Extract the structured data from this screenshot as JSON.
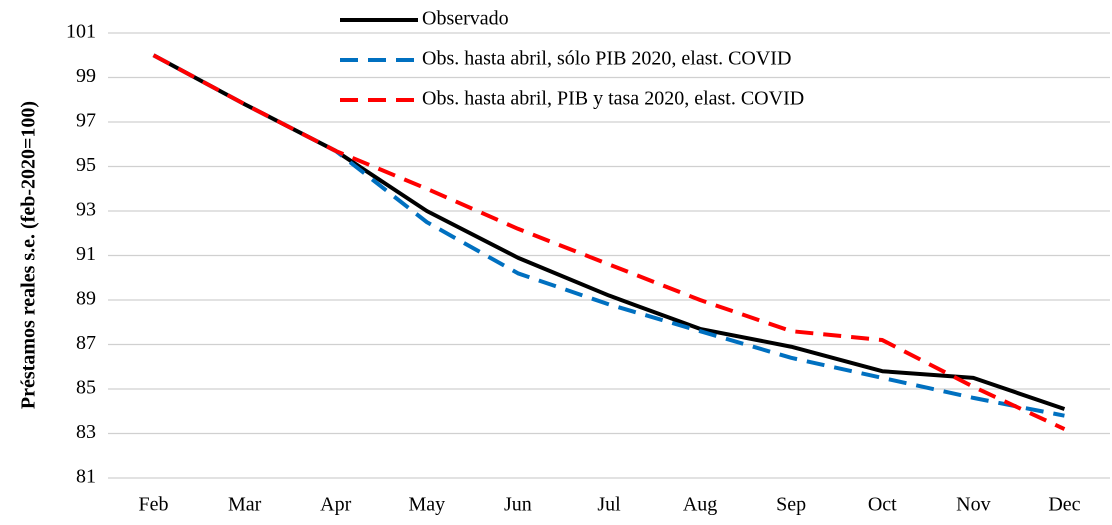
{
  "chart_data": {
    "type": "line",
    "y_label": "Préstamos reales s.e. (feb-2020=100)",
    "categories": [
      "Feb",
      "Mar",
      "Apr",
      "May",
      "Jun",
      "Jul",
      "Aug",
      "Sep",
      "Oct",
      "Nov",
      "Dec"
    ],
    "series": [
      {
        "name": "Observado",
        "color": "#000000",
        "style": "solid",
        "values": [
          100,
          97.8,
          95.7,
          93.0,
          90.9,
          89.2,
          87.7,
          86.9,
          85.8,
          85.5,
          84.1
        ]
      },
      {
        "name": "Obs. hasta abril, sólo PIB 2020, elast. COVID",
        "color": "#0070c0",
        "style": "dashed",
        "values": [
          100,
          97.8,
          95.7,
          92.5,
          90.2,
          88.8,
          87.6,
          86.4,
          85.5,
          84.6,
          83.8
        ]
      },
      {
        "name": "Obs. hasta abril, PIB y tasa 2020, elast. COVID",
        "color": "#ff0000",
        "style": "dashed",
        "values": [
          100,
          97.8,
          95.7,
          94.0,
          92.2,
          90.6,
          89.0,
          87.6,
          87.2,
          85.1,
          83.2
        ]
      }
    ],
    "ylim": [
      81,
      101
    ],
    "yticks": [
      81,
      83,
      85,
      87,
      89,
      91,
      93,
      95,
      97,
      99,
      101
    ],
    "grid": true
  }
}
